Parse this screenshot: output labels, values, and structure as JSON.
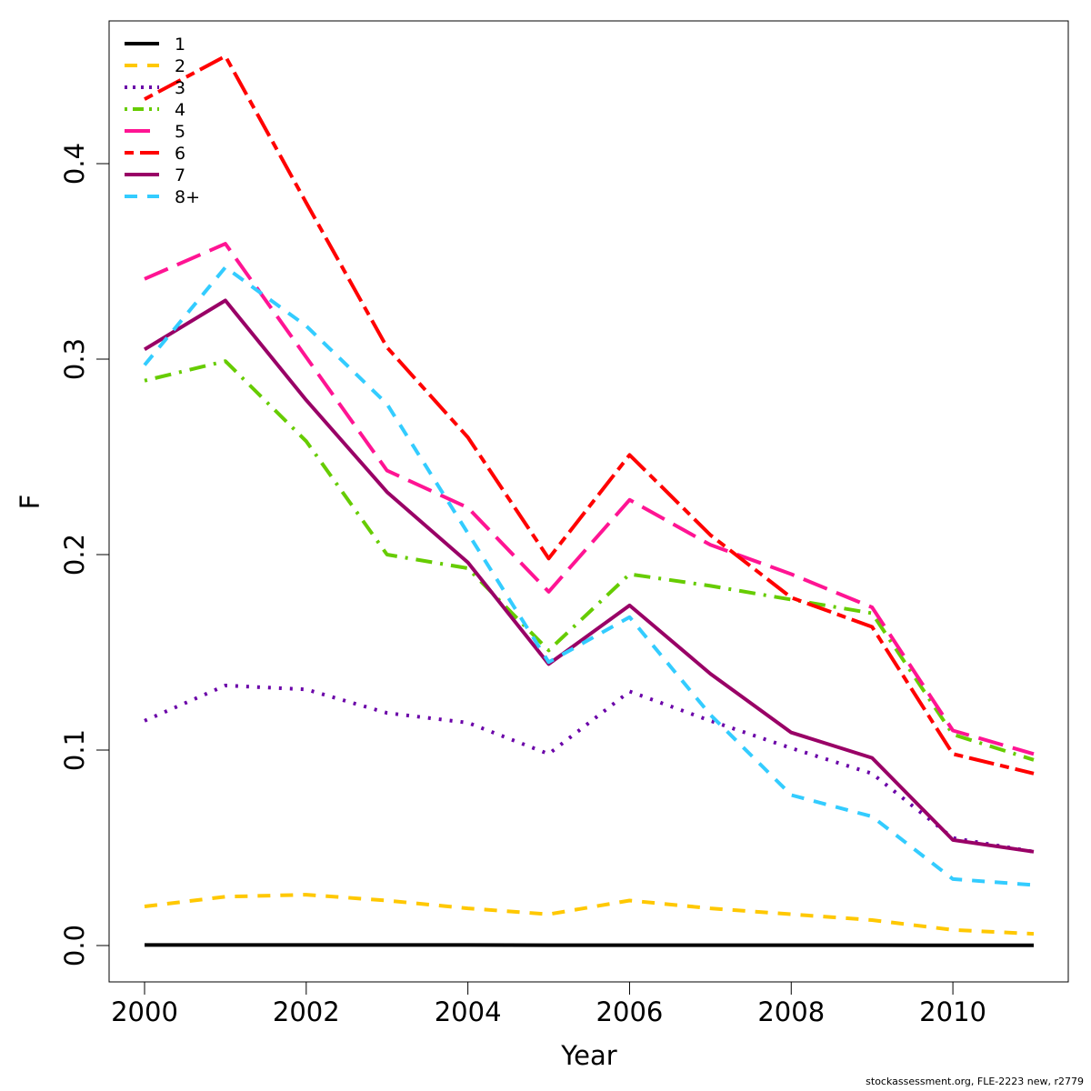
{
  "chart_data": {
    "type": "line",
    "title": "",
    "xlabel": "Year",
    "ylabel": "F",
    "xlim": [
      2000,
      2011
    ],
    "ylim": [
      0,
      0.46
    ],
    "x": [
      2000,
      2001,
      2002,
      2003,
      2004,
      2005,
      2006,
      2007,
      2008,
      2009,
      2010,
      2011
    ],
    "x_ticks": [
      2000,
      2002,
      2004,
      2006,
      2008,
      2010
    ],
    "x_tick_labels": [
      "2000",
      "2002",
      "2004",
      "2006",
      "2008",
      "2010"
    ],
    "y_ticks": [
      0.0,
      0.1,
      0.2,
      0.3,
      0.4
    ],
    "y_tick_labels": [
      "0.0",
      "0.1",
      "0.2",
      "0.3",
      "0.4"
    ],
    "grid": false,
    "legend_position": "top-left",
    "series": [
      {
        "name": "1",
        "color": "#000000",
        "dash": "solid",
        "values": [
          0.0003,
          0.0003,
          0.0003,
          0.0003,
          0.0003,
          0.0002,
          0.0002,
          0.0002,
          0.0002,
          0.0002,
          0.0001,
          0.0001
        ]
      },
      {
        "name": "2",
        "color": "#FFC800",
        "dash": "dashed",
        "values": [
          0.02,
          0.025,
          0.026,
          0.023,
          0.019,
          0.016,
          0.023,
          0.019,
          0.016,
          0.013,
          0.008,
          0.006
        ]
      },
      {
        "name": "3",
        "color": "#6A00A8",
        "dash": "dotted",
        "values": [
          0.115,
          0.133,
          0.131,
          0.119,
          0.114,
          0.098,
          0.13,
          0.115,
          0.101,
          0.088,
          0.055,
          0.048
        ]
      },
      {
        "name": "4",
        "color": "#66CC00",
        "dash": "dotdash",
        "values": [
          0.289,
          0.299,
          0.258,
          0.2,
          0.193,
          0.151,
          0.19,
          0.184,
          0.177,
          0.17,
          0.108,
          0.095
        ]
      },
      {
        "name": "5",
        "color": "#FF1493",
        "dash": "longdash",
        "values": [
          0.341,
          0.359,
          0.301,
          0.243,
          0.224,
          0.181,
          0.228,
          0.205,
          0.19,
          0.173,
          0.11,
          0.098
        ]
      },
      {
        "name": "6",
        "color": "#FF0000",
        "dash": "twodash",
        "values": [
          0.433,
          0.455,
          0.38,
          0.306,
          0.26,
          0.198,
          0.251,
          0.21,
          0.178,
          0.163,
          0.098,
          0.088
        ]
      },
      {
        "name": "7",
        "color": "#990066",
        "dash": "solid",
        "values": [
          0.305,
          0.33,
          0.279,
          0.232,
          0.196,
          0.144,
          0.174,
          0.139,
          0.109,
          0.096,
          0.054,
          0.048
        ]
      },
      {
        "name": "8+",
        "color": "#33CCFF",
        "dash": "dashed",
        "values": [
          0.297,
          0.347,
          0.317,
          0.277,
          0.211,
          0.145,
          0.168,
          0.118,
          0.077,
          0.066,
          0.034,
          0.031
        ]
      }
    ]
  },
  "footnote": "stockassessment.org, FLE-2223 new, r2779"
}
